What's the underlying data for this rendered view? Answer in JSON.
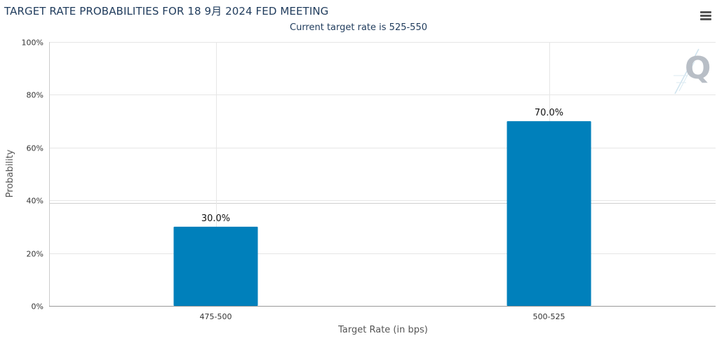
{
  "title": "TARGET RATE PROBABILITIES FOR 18 9月 2024 FED MEETING",
  "subtitle": "Current target rate is 525-550",
  "menu_icon": "hamburger-menu-icon",
  "logo_icon": "q-logo-icon",
  "colors": {
    "bar": "#0080bb",
    "grid": "#e6e6e6",
    "title": "#1f3b5c"
  },
  "chart_data": {
    "type": "bar",
    "title": "TARGET RATE PROBABILITIES FOR 18 9月 2024 FED MEETING",
    "subtitle": "Current target rate is 525-550",
    "xlabel": "Target Rate (in bps)",
    "ylabel": "Probability",
    "categories": [
      "475-500",
      "500-525"
    ],
    "values": [
      30.0,
      70.0
    ],
    "data_labels": [
      "30.0%",
      "70.0%"
    ],
    "ylim": [
      0,
      100
    ],
    "yticks": [
      0,
      20,
      40,
      60,
      80,
      100
    ],
    "ytick_labels": [
      "0%",
      "20%",
      "40%",
      "60%",
      "80%",
      "100%"
    ],
    "grid": true,
    "legend": "none"
  }
}
